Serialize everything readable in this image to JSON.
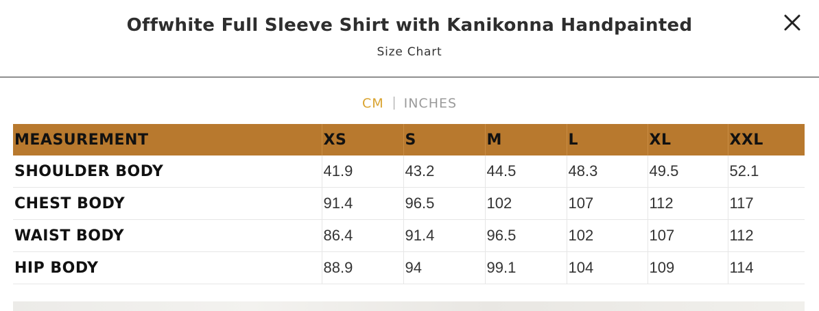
{
  "header": {
    "title": "Offwhite Full Sleeve Shirt with Kanikonna Handpainted",
    "subtitle": "Size Chart"
  },
  "units": {
    "cm_label": "CM",
    "inches_label": "INCHES",
    "active": "CM",
    "active_color": "#d9a32e",
    "inactive_color": "#9a9a9a"
  },
  "table": {
    "header_color": "#b8792e",
    "columns": [
      "MEASUREMENT",
      "XS",
      "S",
      "M",
      "L",
      "XL",
      "XXL"
    ],
    "rows": [
      [
        "SHOULDER BODY",
        "41.9",
        "43.2",
        "44.5",
        "48.3",
        "49.5",
        "52.1"
      ],
      [
        "CHEST BODY",
        "91.4",
        "96.5",
        "102",
        "107",
        "112",
        "117"
      ],
      [
        "WAIST BODY",
        "86.4",
        "91.4",
        "96.5",
        "102",
        "107",
        "112"
      ],
      [
        "HIP BODY",
        "88.9",
        "94",
        "99.1",
        "104",
        "109",
        "114"
      ]
    ]
  },
  "icons": {
    "close": "close-icon"
  }
}
